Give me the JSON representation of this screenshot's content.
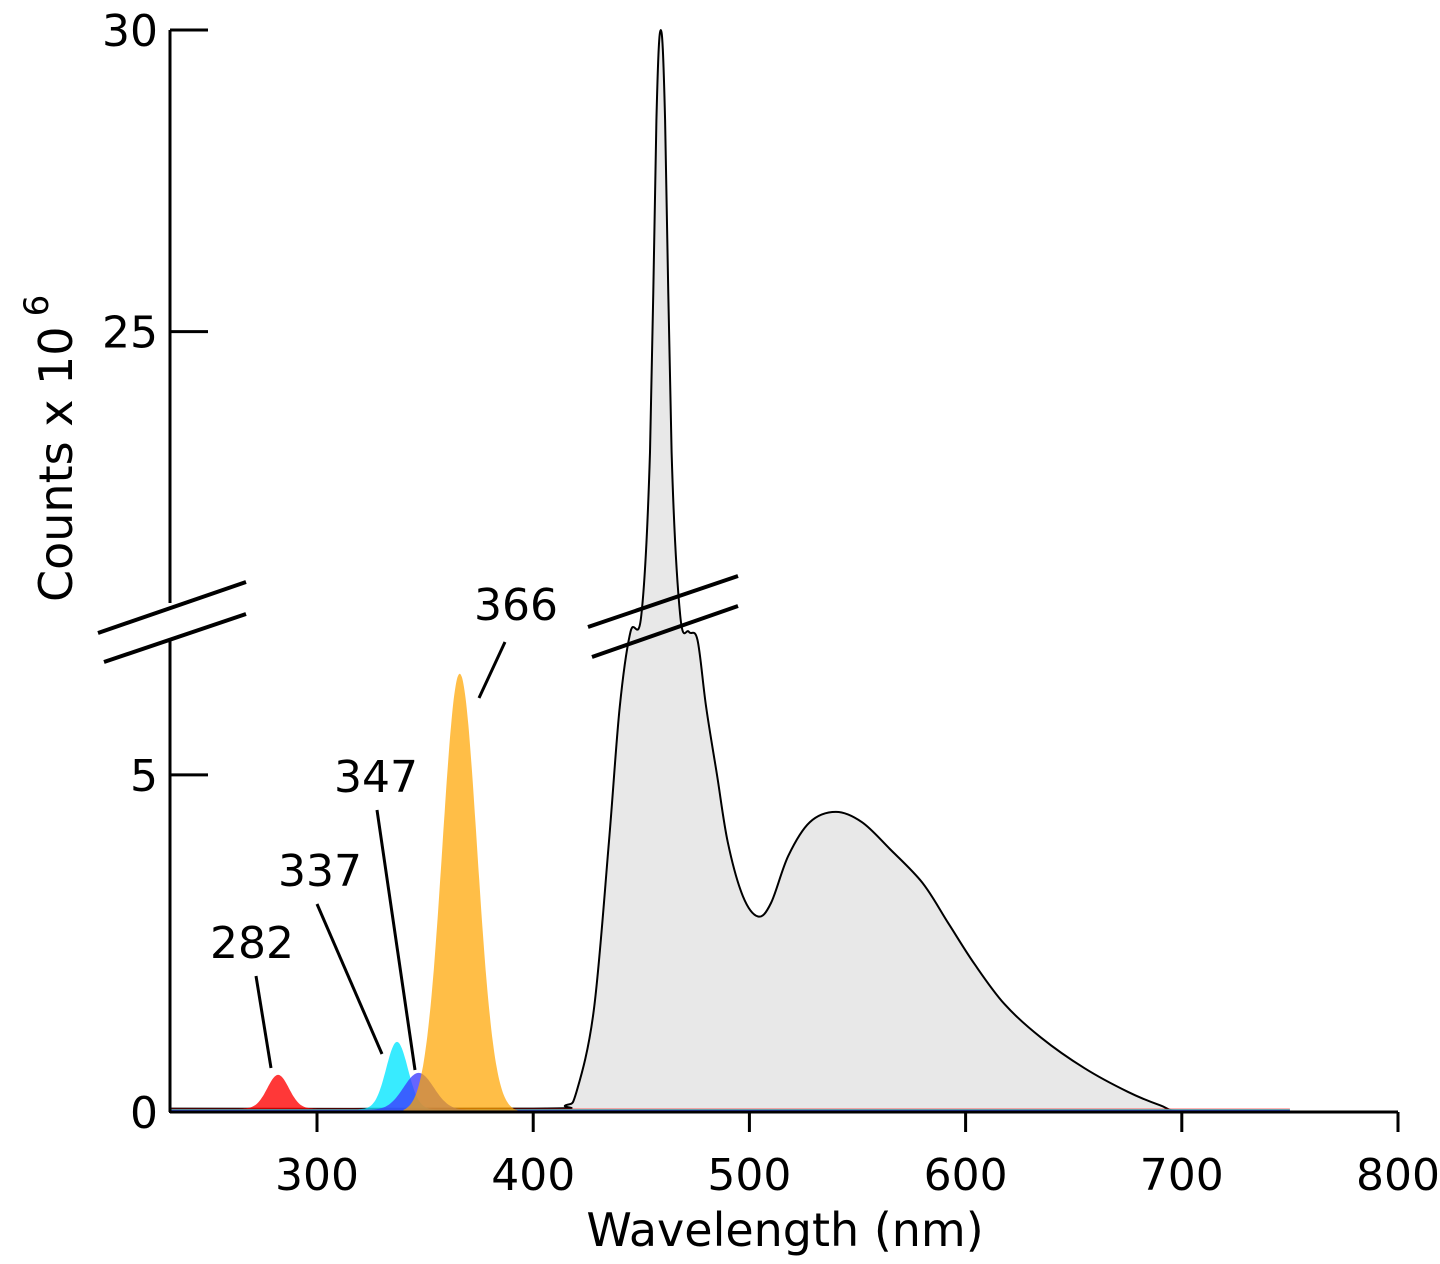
{
  "chart_data": {
    "type": "area",
    "xlabel": "Wavelength (nm)",
    "ylabel": "Counts x 10",
    "ylabel_superscript": "6",
    "xlim": [
      232,
      800
    ],
    "ylim": [
      0,
      30
    ],
    "y_axis_break": [
      7,
      20.5
    ],
    "x_ticks": [
      300,
      400,
      500,
      600,
      700,
      800
    ],
    "x_tick_labels": [
      "300",
      "400",
      "500",
      "600",
      "700",
      "800"
    ],
    "y_ticks": [
      0,
      5,
      25,
      30
    ],
    "y_tick_labels": [
      "0",
      "5",
      "25",
      "30"
    ],
    "grid": false,
    "series": [
      {
        "color": "#e8e8e8",
        "outline": "#000000",
        "points": [
          [
            232,
            0.05
          ],
          [
            400,
            0.05
          ],
          [
            415,
            0.1
          ],
          [
            420,
            0.3
          ],
          [
            428,
            1.5
          ],
          [
            435,
            4.0
          ],
          [
            440,
            6.0
          ],
          [
            445,
            10
          ],
          [
            450,
            16
          ],
          [
            454,
            23
          ],
          [
            457,
            28.5
          ],
          [
            459,
            30.0
          ],
          [
            461,
            28.5
          ],
          [
            464,
            23
          ],
          [
            468,
            16
          ],
          [
            472,
            10
          ],
          [
            476,
            7.0
          ],
          [
            480,
            6.0
          ],
          [
            485,
            5.0
          ],
          [
            490,
            4.0
          ],
          [
            497,
            3.2
          ],
          [
            504,
            2.9
          ],
          [
            510,
            3.1
          ],
          [
            518,
            3.8
          ],
          [
            528,
            4.3
          ],
          [
            540,
            4.45
          ],
          [
            552,
            4.3
          ],
          [
            565,
            3.9
          ],
          [
            580,
            3.4
          ],
          [
            592,
            2.8
          ],
          [
            604,
            2.2
          ],
          [
            618,
            1.6
          ],
          [
            635,
            1.1
          ],
          [
            655,
            0.65
          ],
          [
            675,
            0.3
          ],
          [
            690,
            0.1
          ],
          [
            702,
            0.0
          ],
          [
            750,
            0.0
          ]
        ]
      },
      {
        "color": "#ff0000",
        "peak_x": 282,
        "peak_y": 0.5,
        "sigma": 5,
        "baseline": 0.05,
        "range": [
          232,
          750
        ]
      },
      {
        "color": "#00e5ff",
        "peak_x": 337,
        "peak_y": 1.0,
        "sigma": 5,
        "baseline": 0.04,
        "range": [
          232,
          750
        ]
      },
      {
        "color": "#3a3aff",
        "peak_x": 347,
        "peak_y": 0.55,
        "sigma": 7,
        "baseline": 0.03,
        "range": [
          232,
          750
        ]
      },
      {
        "color": "#ffa500",
        "peak_x": 366,
        "peak_y": 6.5,
        "sigma": 8,
        "baseline": 0.0,
        "range": [
          340,
          400
        ]
      }
    ],
    "annotations": [
      {
        "text": "282",
        "x": 282
      },
      {
        "text": "337",
        "x": 337
      },
      {
        "text": "347",
        "x": 347
      },
      {
        "text": "366",
        "x": 366
      }
    ]
  }
}
